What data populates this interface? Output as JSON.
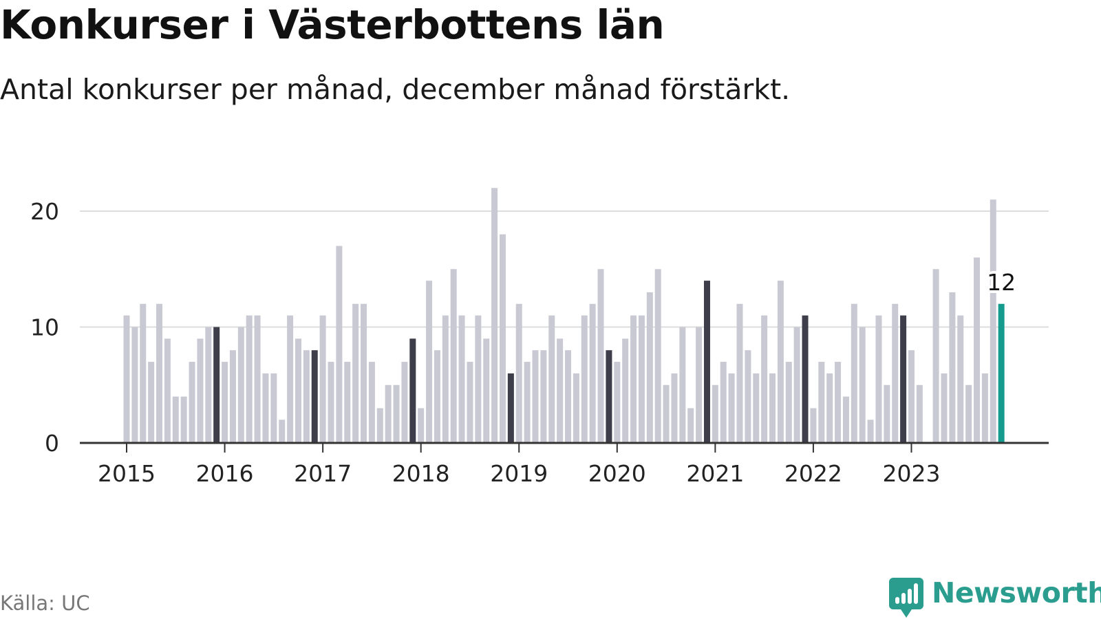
{
  "header": {
    "title": "Konkurser i Västerbottens län",
    "subtitle": "Antal konkurser per månad, december månad förstärkt."
  },
  "footer": {
    "source": "Källa: UC",
    "brand": "Newsworthy"
  },
  "colors": {
    "regular_month": "#c9c9d3",
    "december": "#3e3e4a",
    "latest": "#159a8e",
    "grid": "#dddddd",
    "axis": "#333333",
    "brand": "#2a9d8f"
  },
  "icons": {
    "brand_logo": "bar-chart-speech-bubble-icon"
  },
  "chart_data": {
    "type": "bar",
    "title": "Konkurser i Västerbottens län",
    "subtitle": "Antal konkurser per månad, december månad förstärkt.",
    "x_label": "",
    "y_label": "",
    "start": "2015-01",
    "end": "2023-12",
    "frequency": "monthly",
    "years": [
      "2015",
      "2016",
      "2017",
      "2018",
      "2019",
      "2020",
      "2021",
      "2022",
      "2023"
    ],
    "values": [
      11,
      10,
      12,
      7,
      12,
      9,
      4,
      4,
      7,
      9,
      10,
      10,
      7,
      8,
      10,
      11,
      11,
      6,
      6,
      2,
      11,
      9,
      8,
      8,
      11,
      7,
      17,
      7,
      12,
      12,
      7,
      3,
      5,
      5,
      7,
      9,
      3,
      14,
      8,
      11,
      15,
      11,
      7,
      11,
      9,
      22,
      18,
      6,
      12,
      7,
      8,
      8,
      11,
      9,
      8,
      6,
      11,
      12,
      15,
      8,
      7,
      9,
      11,
      11,
      13,
      15,
      5,
      6,
      10,
      3,
      10,
      14,
      5,
      7,
      6,
      12,
      8,
      6,
      11,
      6,
      14,
      7,
      10,
      11,
      3,
      7,
      6,
      7,
      4,
      12,
      10,
      2,
      11,
      5,
      12,
      11,
      8,
      5,
      0,
      15,
      6,
      13,
      11,
      5,
      16,
      6,
      21,
      12
    ],
    "highlight": {
      "december": "darker bars",
      "latest_label": "12"
    },
    "y_ticks": [
      "0",
      "10",
      "20"
    ],
    "ylim": [
      0,
      22
    ],
    "grid": true,
    "legend": "none"
  }
}
